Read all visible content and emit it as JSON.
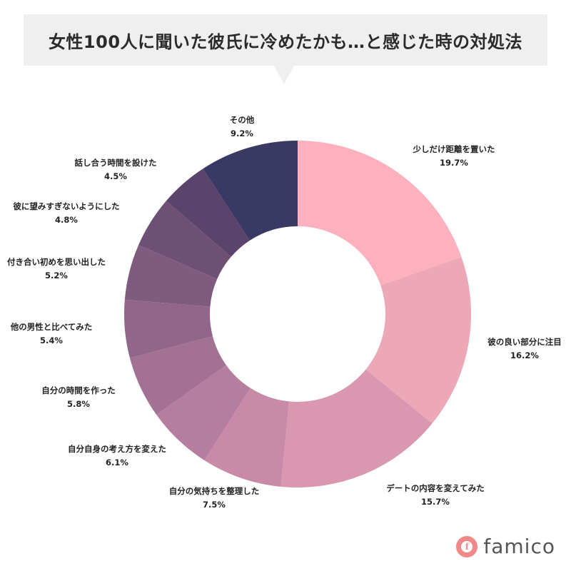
{
  "title": "女性100人に聞いた彼氏に冷めたかも…と感じた時の対処法",
  "brand": {
    "name": "famico",
    "mark": "f"
  },
  "chart_data": {
    "type": "donut",
    "title": "女性100人に聞いた彼氏に冷めたかも…と感じた時の対処法",
    "unit": "%",
    "slices": [
      {
        "label": "少しだけ距離を置いた",
        "value": 19.7,
        "display": "19.7%",
        "color": "#fdb1be"
      },
      {
        "label": "彼の良い部分に注目",
        "value": 16.2,
        "display": "16.2%",
        "color": "#eda8b8"
      },
      {
        "label": "デートの内容を変えてみた",
        "value": 15.7,
        "display": "15.7%",
        "color": "#da98b0"
      },
      {
        "label": "自分の気持ちを整理した",
        "value": 7.5,
        "display": "7.5%",
        "color": "#c88aa7"
      },
      {
        "label": "自分自身の考え方を変えた",
        "value": 6.1,
        "display": "6.1%",
        "color": "#b57d9e"
      },
      {
        "label": "自分の時間を作った",
        "value": 5.8,
        "display": "5.8%",
        "color": "#a37194"
      },
      {
        "label": "他の男性と比べてみた",
        "value": 5.4,
        "display": "5.4%",
        "color": "#91668a"
      },
      {
        "label": "付き合い初めを思い出した",
        "value": 5.2,
        "display": "5.2%",
        "color": "#805b80"
      },
      {
        "label": "彼に望みすぎないようにした",
        "value": 4.8,
        "display": "4.8%",
        "color": "#6e5075"
      },
      {
        "label": "話し合う時間を設けた",
        "value": 4.5,
        "display": "4.5%",
        "color": "#5b446b"
      },
      {
        "label": "その他",
        "value": 9.2,
        "display": "9.2%",
        "color": "#3a3964"
      }
    ]
  }
}
